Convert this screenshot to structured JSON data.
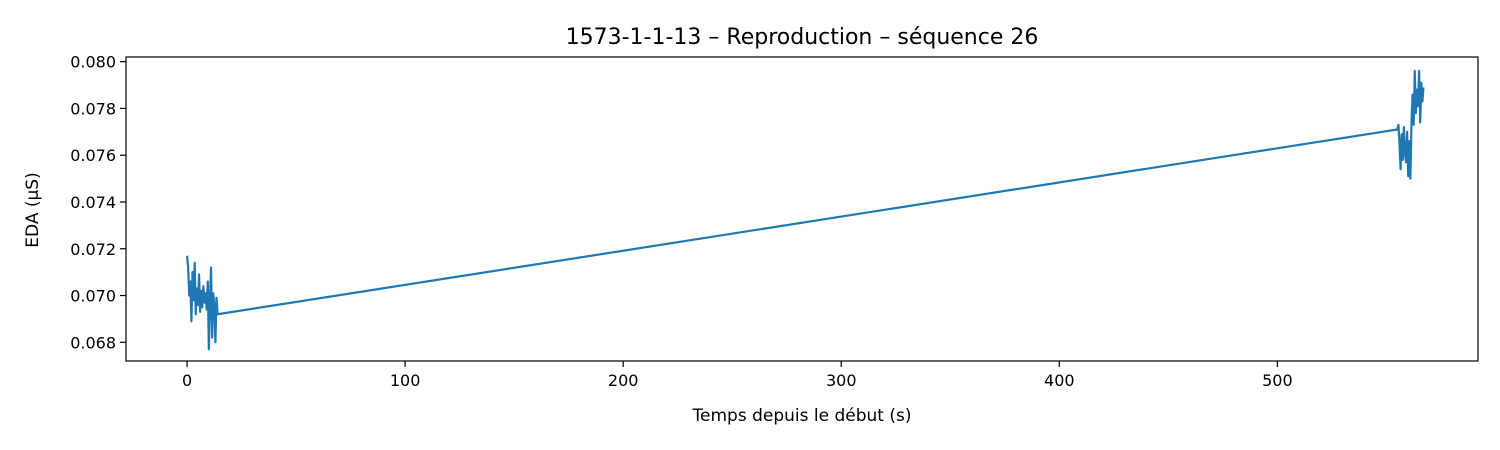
{
  "chart_data": {
    "type": "line",
    "title": "1573-1-1-13 – Reproduction – séquence 26",
    "xlabel": "Temps depuis le début (s)",
    "ylabel": "EDA (µS)",
    "xlim": [
      -28,
      592
    ],
    "ylim": [
      0.0672,
      0.0802
    ],
    "xticks": [
      0,
      100,
      200,
      300,
      400,
      500
    ],
    "yticks": [
      0.068,
      0.07,
      0.072,
      0.074,
      0.076,
      0.078,
      0.08
    ],
    "ytick_labels": [
      "0.068",
      "0.070",
      "0.072",
      "0.074",
      "0.076",
      "0.078",
      "0.080"
    ],
    "grid": false,
    "series": [
      {
        "color": "#1f77b4",
        "x": [
          0,
          0.5,
          1,
          1.5,
          2,
          2.5,
          3,
          3.5,
          4,
          4.5,
          5,
          5.5,
          6,
          6.5,
          7,
          7.5,
          8,
          8.5,
          9,
          9.5,
          10,
          10.5,
          11,
          11.5,
          12,
          12.5,
          13,
          13.5,
          14,
          555,
          555.5,
          556,
          556.5,
          557,
          557.5,
          558,
          558.5,
          559,
          559.5,
          560,
          560.5,
          561,
          561.5,
          562,
          562.5,
          563,
          563.5,
          564,
          564.5,
          565,
          565.5,
          566,
          566.5,
          567
        ],
        "y": [
          0.0717,
          0.0712,
          0.07,
          0.0706,
          0.0689,
          0.071,
          0.0698,
          0.0714,
          0.0692,
          0.0703,
          0.0696,
          0.0709,
          0.0693,
          0.0702,
          0.0695,
          0.0704,
          0.0697,
          0.0701,
          0.0694,
          0.0706,
          0.0677,
          0.0698,
          0.0712,
          0.0682,
          0.0701,
          0.0696,
          0.068,
          0.0699,
          0.0692,
          0.0771,
          0.0773,
          0.0765,
          0.0754,
          0.0769,
          0.0758,
          0.0772,
          0.0761,
          0.0757,
          0.077,
          0.0751,
          0.0766,
          0.075,
          0.0774,
          0.0786,
          0.0773,
          0.0796,
          0.0778,
          0.0788,
          0.0781,
          0.0796,
          0.0774,
          0.0791,
          0.0783,
          0.0789
        ]
      }
    ]
  }
}
